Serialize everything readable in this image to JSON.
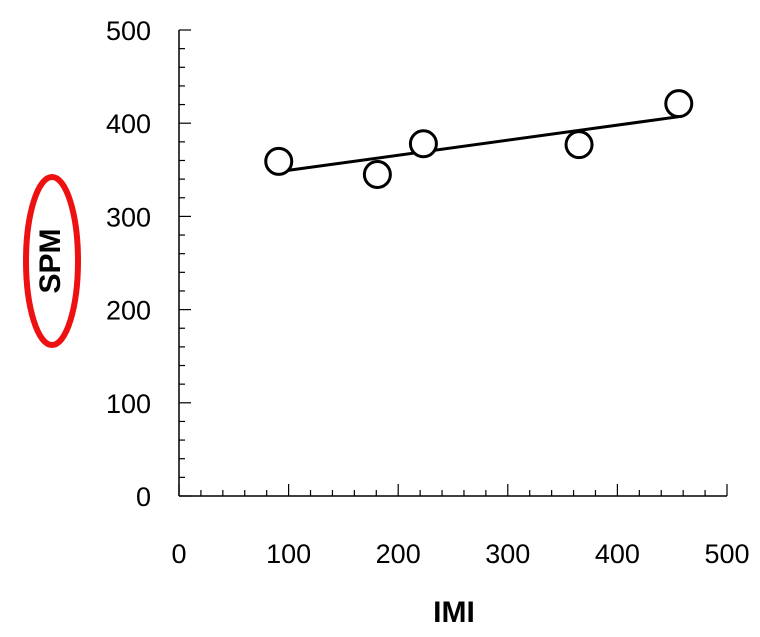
{
  "chart_data": {
    "type": "scatter",
    "xlabel": "IMI",
    "ylabel": "SPM",
    "xlim": [
      0,
      500
    ],
    "ylim": [
      0,
      500
    ],
    "x_ticks": [
      "0",
      "100",
      "200",
      "300",
      "400",
      "500"
    ],
    "y_ticks": [
      "0",
      "100",
      "200",
      "300",
      "400",
      "500"
    ],
    "x_minor_step": 20,
    "y_minor_step": 20,
    "grid": false,
    "series": [
      {
        "points": [
          {
            "x": 91,
            "y": 359
          },
          {
            "x": 181,
            "y": 345
          },
          {
            "x": 223,
            "y": 378
          },
          {
            "x": 365,
            "y": 377
          },
          {
            "x": 456,
            "y": 421
          }
        ],
        "marker": "open-circle",
        "color": "#000000"
      }
    ],
    "trendline": {
      "x1": 91,
      "y1": 348,
      "x2": 456,
      "y2": 407,
      "color": "#000000"
    },
    "annotation": {
      "shape": "ellipse",
      "target": "ylabel",
      "color": "#ee1111"
    }
  }
}
